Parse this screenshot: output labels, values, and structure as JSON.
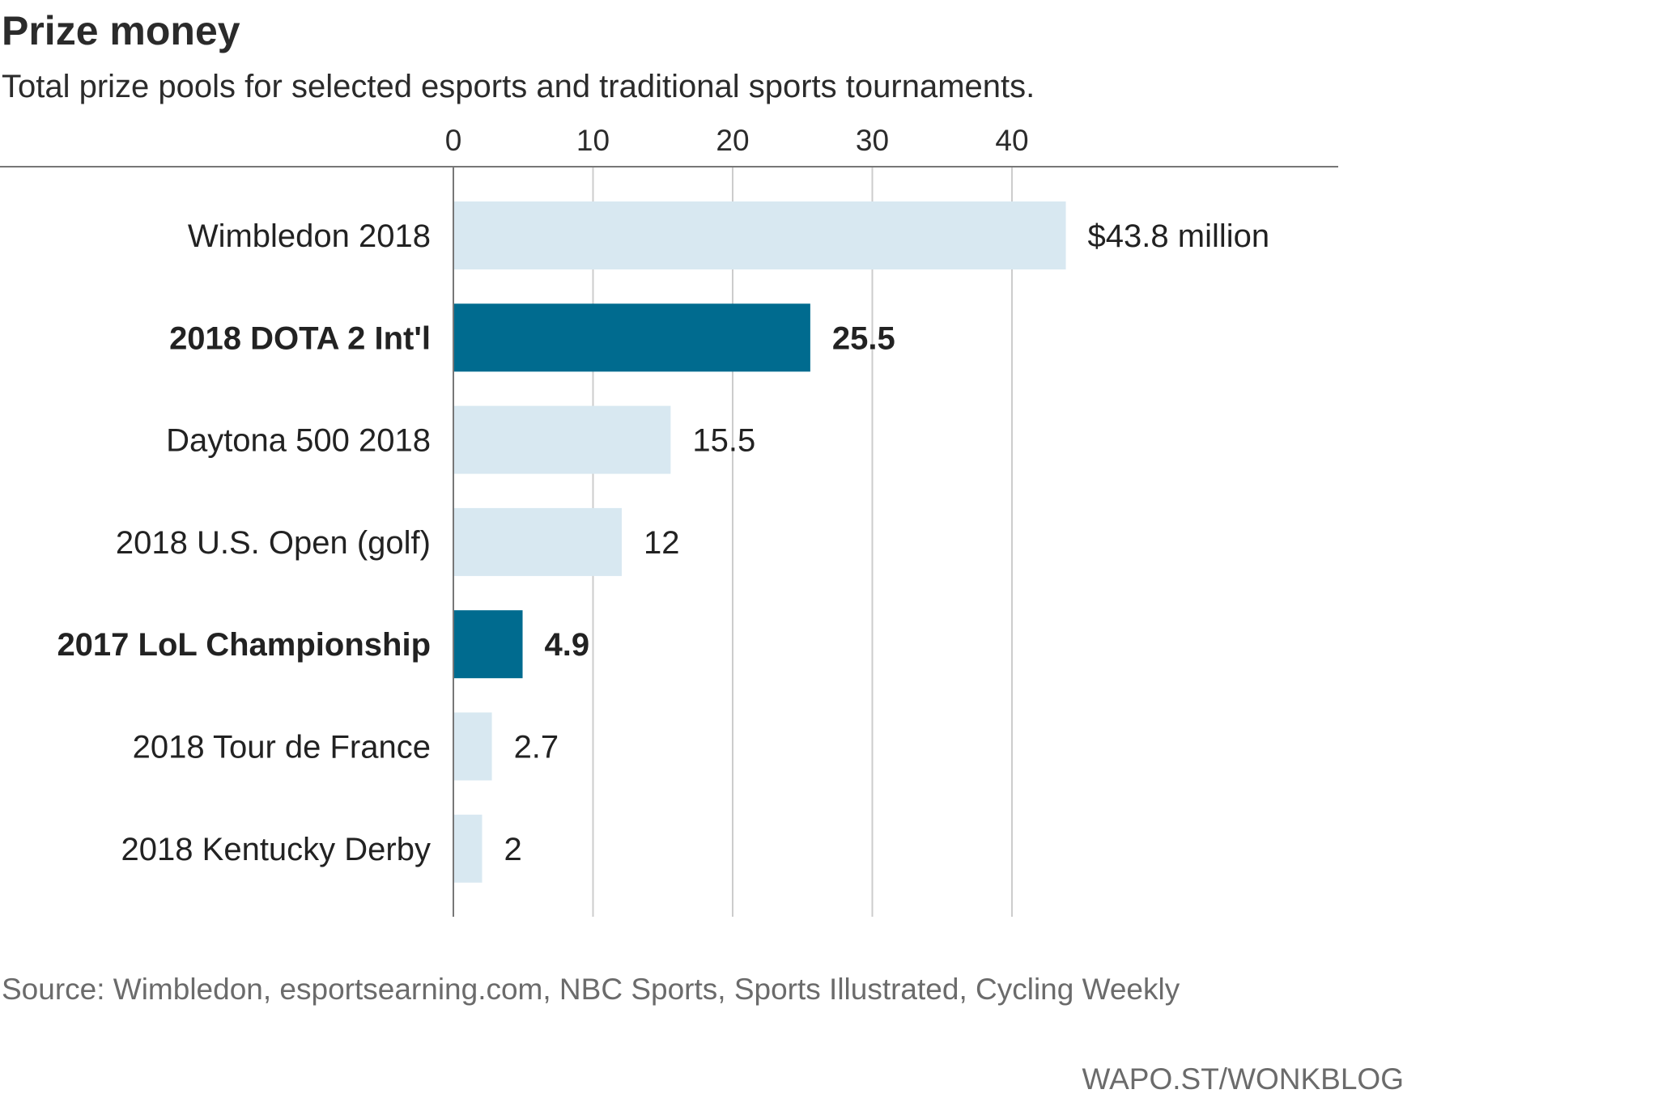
{
  "chart_data": {
    "type": "bar",
    "orientation": "horizontal",
    "title": "Prize money",
    "subtitle": "Total prize pools for selected esports and traditional sports tournaments.",
    "categories": [
      "Wimbledon 2018",
      "2018 DOTA 2 Int'l",
      "Daytona 500 2018",
      "2018 U.S. Open (golf)",
      "2017 LoL Championship",
      "2018 Tour de France",
      "2018 Kentucky Derby"
    ],
    "values": [
      43.8,
      25.5,
      15.5,
      12,
      4.9,
      2.7,
      2
    ],
    "value_labels": [
      "$43.8 million",
      "25.5",
      "15.5",
      "12",
      "4.9",
      "2.7",
      "2"
    ],
    "highlighted": [
      false,
      true,
      false,
      false,
      true,
      false,
      false
    ],
    "xlim": [
      0,
      50
    ],
    "xticks": [
      0,
      10,
      20,
      30,
      40
    ],
    "tick_labels": [
      "0",
      "10",
      "20",
      "30",
      "40"
    ],
    "grid": true,
    "colors": {
      "highlight": "#006b8f",
      "default": "#d8e8f1",
      "gridline": "#cccccc",
      "axis": "#777777",
      "text": "#222222"
    }
  },
  "source": "Source: Wimbledon, esportsearning.com, NBC Sports, Sports Illustrated, Cycling Weekly",
  "credit": "WAPO.ST/WONKBLOG"
}
